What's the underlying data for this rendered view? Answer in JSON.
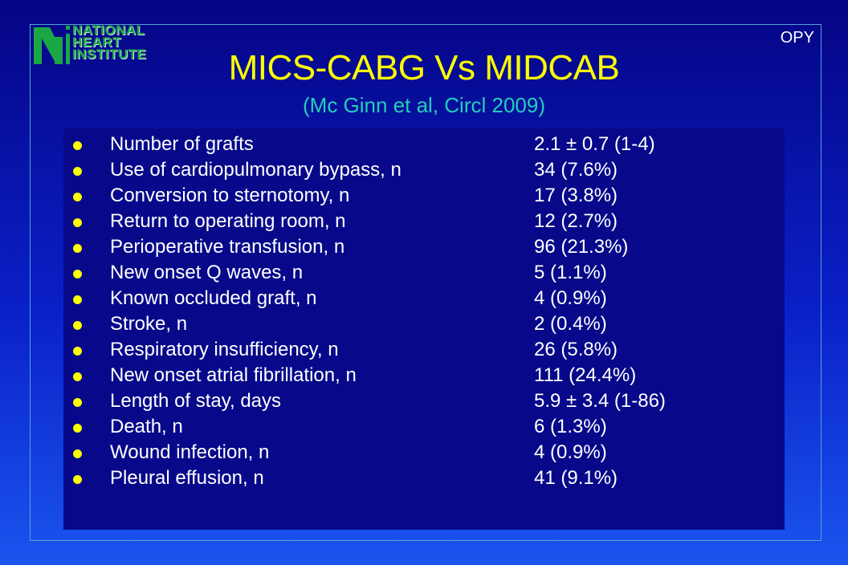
{
  "logo": {
    "lines": [
      "NATIONAL",
      "HEART",
      "INSTITUTE"
    ],
    "icon": "national-heart-institute-logo",
    "color": "#1aa845"
  },
  "corner_tag": "OPY",
  "title": "MICS-CABG Vs MIDCAB",
  "subtitle": "(Mc Ginn et al, Circl 2009)",
  "colors": {
    "title": "#ffff00",
    "subtitle": "#22d0b8",
    "bullet": "#ffff00",
    "panel": "#07098a",
    "text": "#ffffff"
  },
  "rows": [
    {
      "label": "Number of grafts",
      "value": "2.1 ± 0.7 (1-4)"
    },
    {
      "label": "Use of cardiopulmonary bypass, n",
      "value": "34 (7.6%)"
    },
    {
      "label": "Conversion to sternotomy, n",
      "value": "17 (3.8%)"
    },
    {
      "label": "Return to operating room, n",
      "value": "12 (2.7%)"
    },
    {
      "label": "Perioperative transfusion, n",
      "value": "96 (21.3%)"
    },
    {
      "label": "New onset Q waves, n",
      "value": "5 (1.1%)"
    },
    {
      "label": "Known occluded graft, n",
      "value": "4 (0.9%)"
    },
    {
      "label": "Stroke, n",
      "value": "2 (0.4%)"
    },
    {
      "label": "Respiratory insufficiency, n",
      "value": "26 (5.8%)"
    },
    {
      "label": "New onset atrial fibrillation, n",
      "value": "111 (24.4%)"
    },
    {
      "label": "Length of stay, days",
      "value": "5.9 ± 3.4 (1-86)"
    },
    {
      "label": "Death, n",
      "value": "6 (1.3%)"
    },
    {
      "label": "Wound infection, n",
      "value": "4 (0.9%)"
    },
    {
      "label": "Pleural effusion, n",
      "value": "41 (9.1%)"
    }
  ]
}
